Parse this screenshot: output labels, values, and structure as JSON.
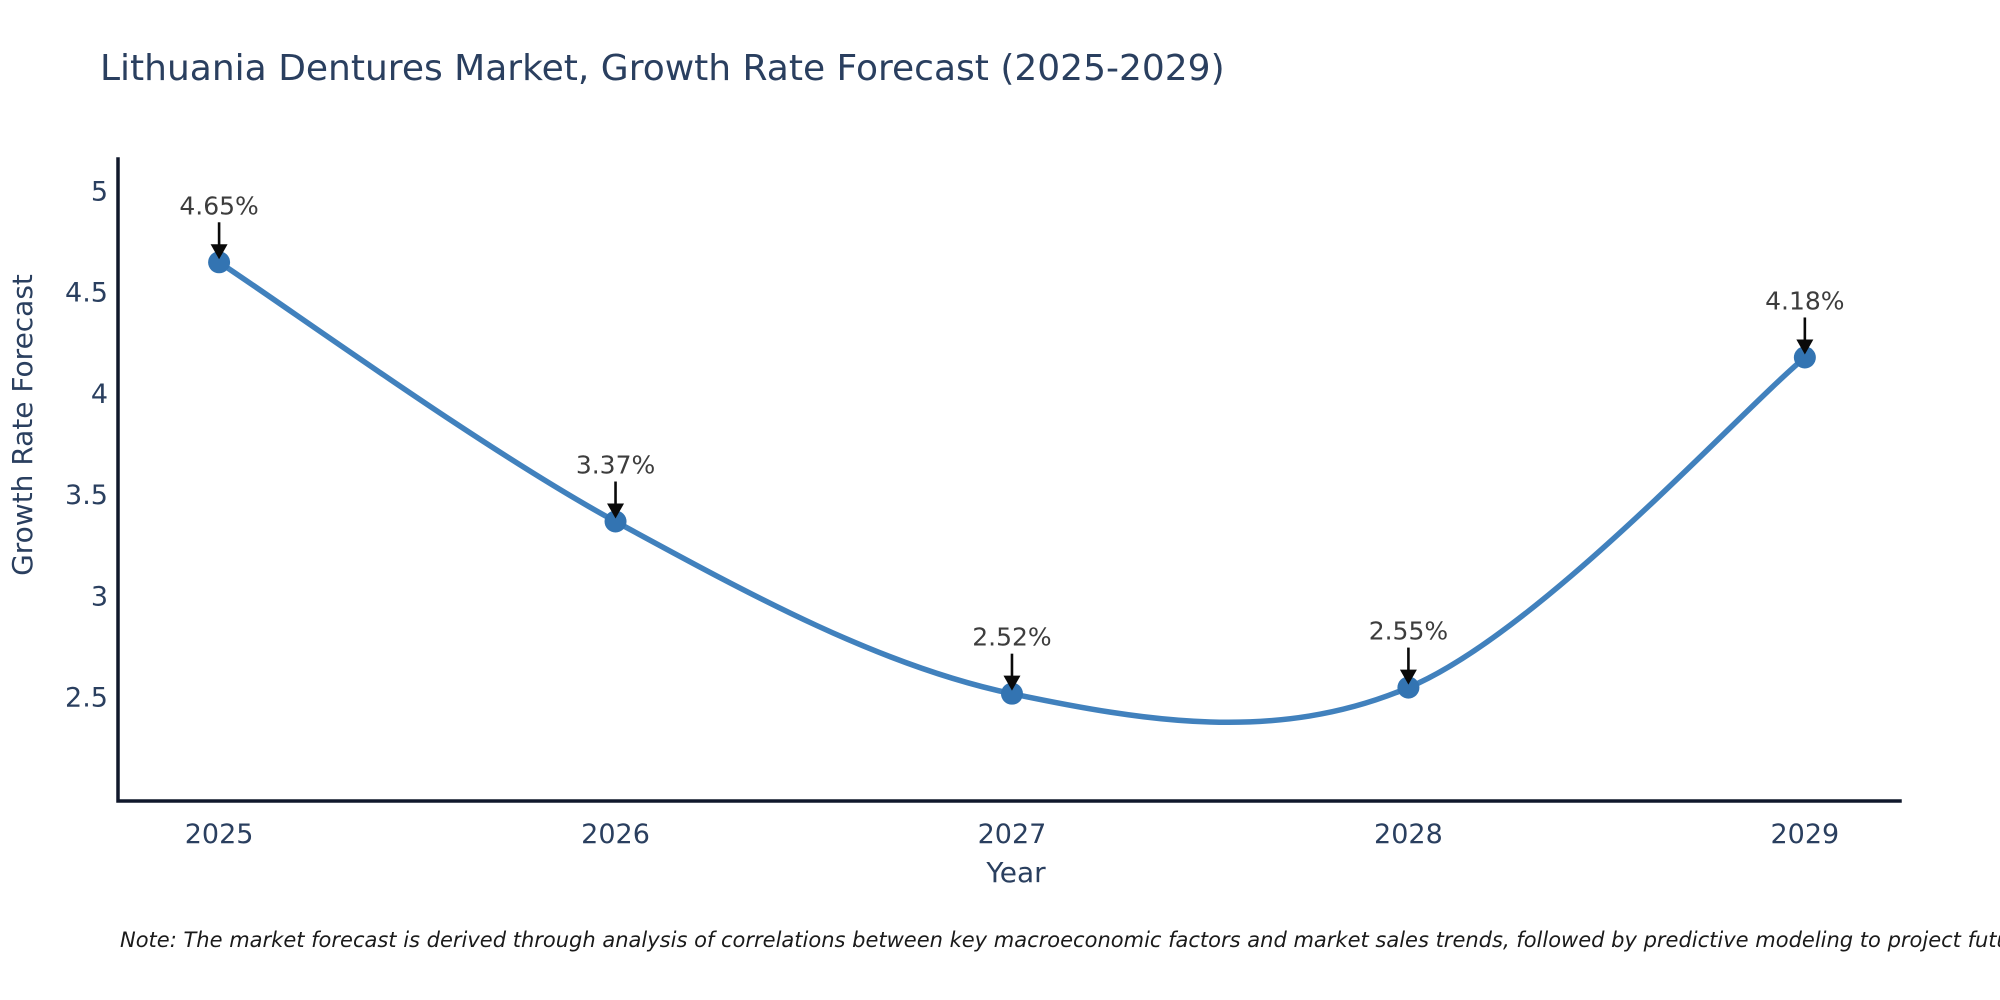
{
  "title": "Lithuania Dentures Market, Growth Rate Forecast (2025-2029)",
  "note": "Note: The market forecast is derived through analysis of correlations between key macroeconomic factors and market sales trends, followed by predictive modeling to project future sales",
  "colors": {
    "title_text": "#2a3f5f",
    "axis_line": "#10182b",
    "tick_text": "#2a3f5f",
    "series_line": "#4181bd",
    "marker_fill": "#33developer74b2",
    "marker": "#3374b2",
    "annotation_text": "#3d3d3d",
    "arrow": "#0a0a0a",
    "note_text": "#1a1a1a",
    "background": "#ffffff"
  },
  "chart_data": {
    "type": "line",
    "line_shape": "spline",
    "title": "Lithuania Dentures Market, Growth Rate Forecast (2025-2029)",
    "xlabel": "Year",
    "ylabel": "Growth Rate Forecast",
    "x": [
      2025,
      2026,
      2027,
      2028,
      2029
    ],
    "y": [
      4.65,
      3.37,
      2.52,
      2.55,
      4.18
    ],
    "point_labels": [
      "4.65%",
      "3.37%",
      "2.52%",
      "2.55%",
      "4.18%"
    ],
    "yticks": [
      5,
      4.5,
      4,
      3.5,
      3,
      2.5
    ],
    "xticks": [
      2025,
      2026,
      2027,
      2028,
      2029
    ],
    "xlim": [
      2024.745,
      2029.24
    ],
    "ylim": [
      1.99,
      5.16
    ],
    "grid": false,
    "legend": "none",
    "markers": true,
    "annotations_have_arrows": true
  }
}
